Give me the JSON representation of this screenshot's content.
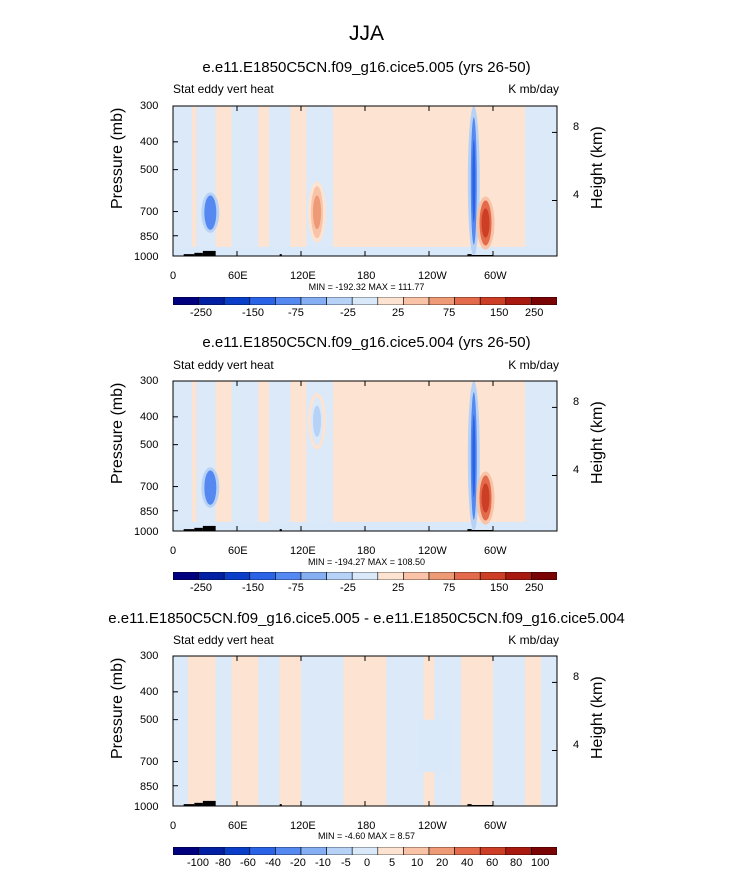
{
  "figure_title": "JJA",
  "colors": {
    "scale_top": [
      "#00007f",
      "#001fa3",
      "#0a3ec8",
      "#2b63e6",
      "#5588f0",
      "#86aef2",
      "#b6d2f6",
      "#d9e9fa",
      "#fde3d2",
      "#f8c3a7",
      "#ef9a77",
      "#e36b4c",
      "#cc3e26",
      "#a81a10",
      "#7a0403"
    ],
    "scale_diff": [
      "#00007f",
      "#001fa3",
      "#0a3ec8",
      "#2b63e6",
      "#5588f0",
      "#86aef2",
      "#b6d2f6",
      "#d9e9fa",
      "#fde3d2",
      "#f8c3a7",
      "#ef9a77",
      "#e36b4c",
      "#cc3e26",
      "#a81a10",
      "#7a0403"
    ],
    "background_negative": "#d9e9fa",
    "background_positive": "#fde3d2",
    "topography": "#000000"
  },
  "panels": [
    {
      "title": "e.e11.E1850C5CN.f09_g16.cice5.005 (yrs 26-50)",
      "left_label": "Stat eddy vert heat",
      "right_label": "K mb/day",
      "minmax": "MIN = -192.32  MAX = 111.77"
    },
    {
      "title": "e.e11.E1850C5CN.f09_g16.cice5.004 (yrs 26-50)",
      "left_label": "Stat eddy vert heat",
      "right_label": "K mb/day",
      "minmax": "MIN = -194.27  MAX = 108.50"
    },
    {
      "title": "e.e11.E1850C5CN.f09_g16.cice5.005 - e.e11.E1850C5CN.f09_g16.cice5.004",
      "left_label": "Stat eddy vert heat",
      "right_label": "K mb/day",
      "minmax": "MIN = -4.60  MAX =  8.57"
    }
  ],
  "chart_data": [
    {
      "type": "heatmap",
      "title": "e.e11.E1850C5CN.f09_g16.cice5.005 (yrs 26-50)",
      "subtitle_left": "Stat eddy vert heat",
      "subtitle_right": "K mb/day",
      "xlabel": "",
      "ylabel": "Pressure (mb)",
      "y2label": "Height (km)",
      "x_ticks": [
        "0",
        "60E",
        "120E",
        "180",
        "120W",
        "60W"
      ],
      "x_tick_values": [
        0,
        60,
        120,
        180,
        240,
        300
      ],
      "xlim": [
        0,
        360
      ],
      "y_ticks": [
        "300",
        "400",
        "500",
        "700",
        "850",
        "1000"
      ],
      "y_tick_values": [
        300,
        400,
        500,
        700,
        850,
        1000
      ],
      "ylim": [
        1000,
        300
      ],
      "y_scale": "log",
      "y2_ticks": [
        "8",
        "4"
      ],
      "colorbar_labels": [
        "-250",
        "-150",
        "-75",
        "-25",
        "25",
        "75",
        "150",
        "250"
      ],
      "colorbar_levels": [
        -300,
        -250,
        -200,
        -150,
        -100,
        -75,
        -50,
        -25,
        25,
        50,
        75,
        100,
        150,
        200,
        250
      ],
      "min": -192.32,
      "max": 111.77,
      "features": [
        {
          "lon": 35,
          "p_top": 600,
          "p_bottom": 830,
          "value": -150
        },
        {
          "lon": 282,
          "p_top": 300,
          "p_bottom": 1000,
          "value": -192
        },
        {
          "lon": 293,
          "p_top": 620,
          "p_bottom": 950,
          "value": 110
        },
        {
          "lon": 135,
          "p_top": 550,
          "p_bottom": 900,
          "value": 60
        }
      ]
    },
    {
      "type": "heatmap",
      "title": "e.e11.E1850C5CN.f09_g16.cice5.004 (yrs 26-50)",
      "subtitle_left": "Stat eddy vert heat",
      "subtitle_right": "K mb/day",
      "xlabel": "",
      "ylabel": "Pressure (mb)",
      "y2label": "Height (km)",
      "x_ticks": [
        "0",
        "60E",
        "120E",
        "180",
        "120W",
        "60W"
      ],
      "x_tick_values": [
        0,
        60,
        120,
        180,
        240,
        300
      ],
      "xlim": [
        0,
        360
      ],
      "y_ticks": [
        "300",
        "400",
        "500",
        "700",
        "850",
        "1000"
      ],
      "y_tick_values": [
        300,
        400,
        500,
        700,
        850,
        1000
      ],
      "ylim": [
        1000,
        300
      ],
      "y_scale": "log",
      "y2_ticks": [
        "8",
        "4"
      ],
      "colorbar_labels": [
        "-250",
        "-150",
        "-75",
        "-25",
        "25",
        "75",
        "150",
        "250"
      ],
      "colorbar_levels": [
        -300,
        -250,
        -200,
        -150,
        -100,
        -75,
        -50,
        -25,
        25,
        50,
        75,
        100,
        150,
        200,
        250
      ],
      "min": -194.27,
      "max": 108.5,
      "features": [
        {
          "lon": 35,
          "p_top": 600,
          "p_bottom": 830,
          "value": -150
        },
        {
          "lon": 282,
          "p_top": 300,
          "p_bottom": 1000,
          "value": -194
        },
        {
          "lon": 293,
          "p_top": 620,
          "p_bottom": 950,
          "value": 108
        },
        {
          "lon": 135,
          "p_top": 330,
          "p_bottom": 520,
          "value": -60
        }
      ]
    },
    {
      "type": "heatmap",
      "title": "e.e11.E1850C5CN.f09_g16.cice5.005 - e.e11.E1850C5CN.f09_g16.cice5.004",
      "subtitle_left": "Stat eddy vert heat",
      "subtitle_right": "K mb/day",
      "xlabel": "",
      "ylabel": "Pressure (mb)",
      "y2label": "Height (km)",
      "x_ticks": [
        "0",
        "60E",
        "120E",
        "180",
        "120W",
        "60W"
      ],
      "x_tick_values": [
        0,
        60,
        120,
        180,
        240,
        300
      ],
      "xlim": [
        0,
        360
      ],
      "y_ticks": [
        "300",
        "400",
        "500",
        "700",
        "850",
        "1000"
      ],
      "y_tick_values": [
        300,
        400,
        500,
        700,
        850,
        1000
      ],
      "ylim": [
        1000,
        300
      ],
      "y_scale": "log",
      "y2_ticks": [
        "8",
        "4"
      ],
      "colorbar_labels": [
        "-100",
        "-80",
        "-60",
        "-40",
        "-20",
        "-10",
        "-5",
        "0",
        "5",
        "10",
        "20",
        "40",
        "60",
        "80",
        "100"
      ],
      "colorbar_levels": [
        -100,
        -80,
        -60,
        -40,
        -20,
        -10,
        -5,
        0,
        5,
        10,
        20,
        40,
        60,
        80,
        100
      ],
      "min": -4.6,
      "max": 8.57
    }
  ]
}
